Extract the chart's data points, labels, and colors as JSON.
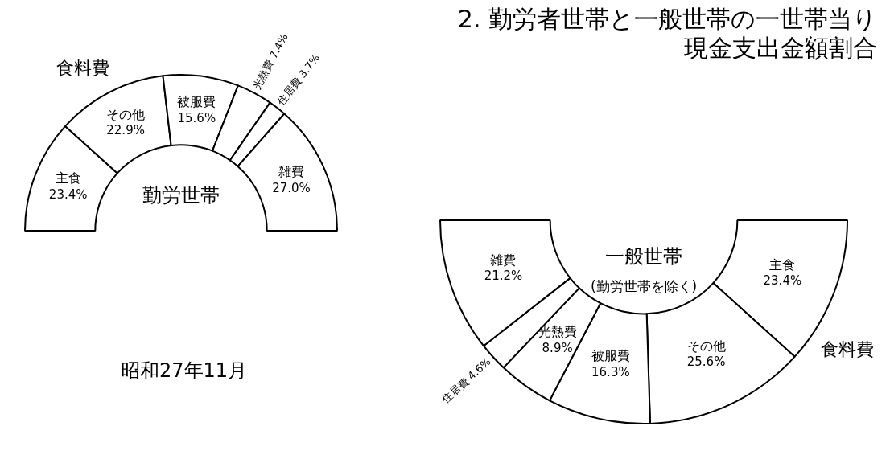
{
  "chart_data": [
    {
      "type": "donut",
      "title": "勤労世帯",
      "categories": [
        "主食",
        "その他",
        "被服費",
        "光熱費",
        "住居費",
        "雑費"
      ],
      "values": [
        23.4,
        22.9,
        15.6,
        7.4,
        3.7,
        27.0
      ],
      "value_labels": [
        "23.4%",
        "22.9%",
        "15.6%",
        "7.4%",
        "3.7%",
        "27.0%"
      ],
      "colors": [
        "#ffffff",
        "#ffffff",
        "#ffffff",
        "#ffffff",
        "#ffffff",
        "#ffffff"
      ],
      "annotations": [
        "2. 勤労者世帯と一般世帯の一世帯当り現金支出金額割合",
        "食料費"
      ]
    },
    {
      "type": "donut",
      "title": "一般世帯",
      "subtitle": "(勤労世帯を除く)",
      "categories": [
        "主食",
        "その他",
        "被服費",
        "光熱費",
        "住居費",
        "雑費"
      ],
      "values": [
        23.4,
        25.6,
        16.3,
        8.9,
        4.6,
        21.2
      ],
      "value_labels": [
        "23.4%",
        "25.6%",
        "16.3%",
        "8.9%",
        "4.6%",
        "21.2%"
      ],
      "colors": [
        "#ffffff",
        "#ffffff",
        "#ffffff",
        "#ffffff",
        "#ffffff",
        "#ffffff"
      ],
      "annotations": [
        "食料費",
        "昭和27年11月"
      ]
    }
  ]
}
